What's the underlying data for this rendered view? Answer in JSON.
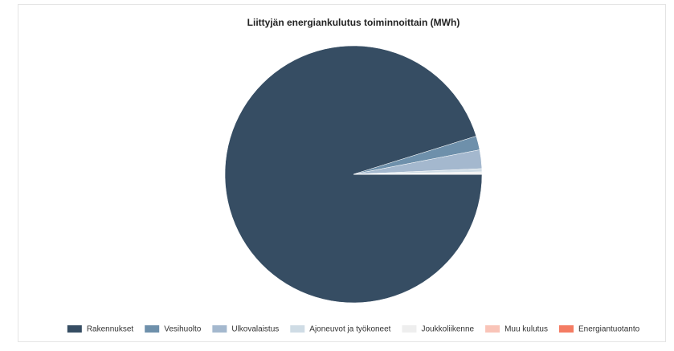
{
  "chart_data": {
    "type": "pie",
    "title": "Liittyjän energiankulutus toiminnoittain (MWh)",
    "categories": [
      "Rakennukset",
      "Vesihuolto",
      "Ulkovalaistus",
      "Ajoneuvot ja työkoneet",
      "Joukkoliikenne",
      "Muu kulutus",
      "Energiantuotanto"
    ],
    "values": [
      95.2,
      1.75,
      2.35,
      0.4,
      0.3,
      0,
      0
    ],
    "colors": [
      "#364d63",
      "#6e90ab",
      "#a4b8ce",
      "#cfdce5",
      "#eeeeee",
      "#f9c4b8",
      "#f47c63"
    ],
    "legend": "bottom"
  }
}
